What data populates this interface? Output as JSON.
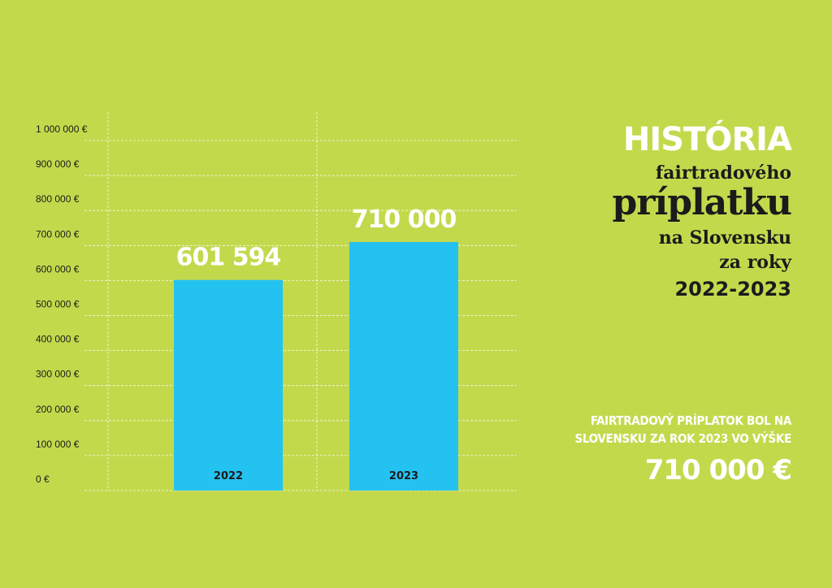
{
  "chart_data": {
    "type": "bar",
    "categories": [
      "2022",
      "2023"
    ],
    "values": [
      601594,
      710000
    ],
    "value_labels": [
      "601 594",
      "710 000"
    ],
    "ylim": [
      0,
      1000000
    ],
    "y_ticks": [
      {
        "value": 0,
        "label": "0 €"
      },
      {
        "value": 100000,
        "label": "100 000 €"
      },
      {
        "value": 200000,
        "label": "200 000 €"
      },
      {
        "value": 300000,
        "label": "300 000 €"
      },
      {
        "value": 400000,
        "label": "400 000 €"
      },
      {
        "value": 500000,
        "label": "500 000 €"
      },
      {
        "value": 600000,
        "label": "600 000 €"
      },
      {
        "value": 700000,
        "label": "700 000 €"
      },
      {
        "value": 800000,
        "label": "800 000 €"
      },
      {
        "value": 900000,
        "label": "900 000 €"
      },
      {
        "value": 1000000,
        "label": "1 000 000 €"
      }
    ],
    "grid": true,
    "bar_color": "#24c2f1"
  },
  "title": {
    "line1": "HISTÓRIA",
    "line2": "fairtradového",
    "line3": "príplatku",
    "line4": "na Slovensku",
    "line5": "za roky",
    "line6": "2022-2023"
  },
  "summary": {
    "line1": "FAIRTRADOVÝ PRÍPLATOK BOL NA",
    "line2": "SLOVENSKU ZA ROK 2023 VO VÝŠKE",
    "amount": "710 000 €"
  },
  "colors": {
    "background": "#c3d94c",
    "bar": "#24c2f1",
    "text_dark": "#1b1b1b",
    "text_light": "#ffffff"
  }
}
